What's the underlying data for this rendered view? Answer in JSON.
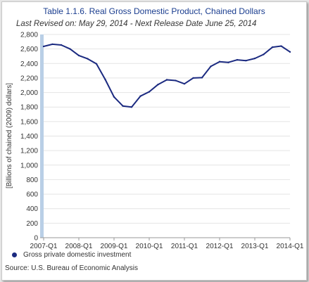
{
  "chart_data": {
    "type": "line",
    "title": "Table 1.1.6. Real Gross Domestic Product, Chained Dollars",
    "subtitle": "Last Revised on: May 29, 2014 - Next Release Date June 25, 2014",
    "ylabel": "[Billions of chained (2009) dollars]",
    "xlabel": "",
    "x_tick_labels": [
      "2007-Q1",
      "2008-Q1",
      "2009-Q1",
      "2010-Q1",
      "2011-Q1",
      "2012-Q1",
      "2013-Q1",
      "2014-Q1"
    ],
    "y_ticks": [
      0,
      200,
      400,
      600,
      800,
      1000,
      1200,
      1400,
      1600,
      1800,
      2000,
      2200,
      2400,
      2600,
      2800
    ],
    "y_tick_labels": [
      "0",
      "200",
      "400",
      "600",
      "800",
      "1,000",
      "1,200",
      "1,400",
      "1,600",
      "1,800",
      "2,000",
      "2,200",
      "2,400",
      "2,600",
      "2,800"
    ],
    "ylim": [
      0,
      2800
    ],
    "grid": true,
    "legend_position": "bottom-left",
    "series": [
      {
        "name": "Gross private domestic investment",
        "color": "#1b2a80",
        "x": [
          "2007-Q1",
          "2007-Q2",
          "2007-Q3",
          "2007-Q4",
          "2008-Q1",
          "2008-Q2",
          "2008-Q3",
          "2008-Q4",
          "2009-Q1",
          "2009-Q2",
          "2009-Q3",
          "2009-Q4",
          "2010-Q1",
          "2010-Q2",
          "2010-Q3",
          "2010-Q4",
          "2011-Q1",
          "2011-Q2",
          "2011-Q3",
          "2011-Q4",
          "2012-Q1",
          "2012-Q2",
          "2012-Q3",
          "2012-Q4",
          "2013-Q1",
          "2013-Q2",
          "2013-Q3",
          "2013-Q4",
          "2014-Q1"
        ],
        "values": [
          2635,
          2665,
          2655,
          2600,
          2510,
          2465,
          2395,
          2180,
          1940,
          1815,
          1800,
          1950,
          2010,
          2110,
          2175,
          2165,
          2120,
          2200,
          2205,
          2360,
          2425,
          2415,
          2450,
          2440,
          2470,
          2525,
          2625,
          2640,
          2560
        ]
      }
    ]
  },
  "source": "Source: U.S. Bureau of Economic Analysis"
}
